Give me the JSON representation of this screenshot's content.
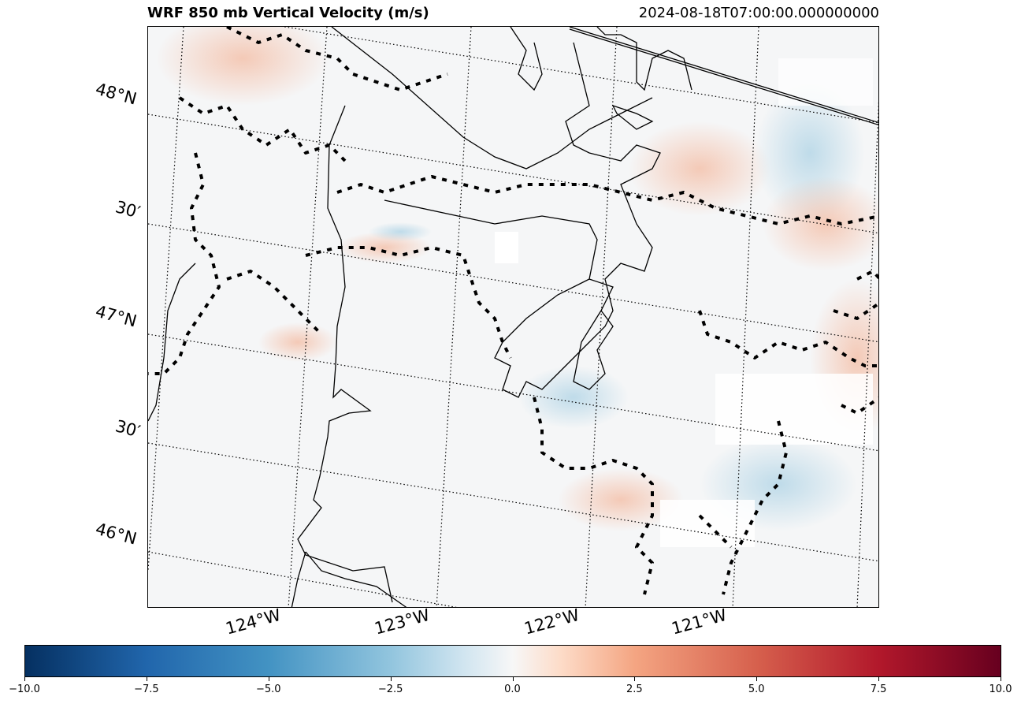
{
  "title": "WRF 850 mb Vertical Velocity (m/s)",
  "valid_time": "2024-08-18T07:00:00.000000000",
  "map": {
    "latitude_labels": [
      "48°N",
      "30′",
      "47°N",
      "30′",
      "46°N"
    ],
    "longitude_labels": [
      "124°W",
      "123°W",
      "122°W",
      "121°W"
    ],
    "line_color": "#000000",
    "gridline_style": "dotted",
    "features": [
      "coastline-icon",
      "state-border-icon",
      "county-border-icon",
      "gridline-icon"
    ]
  },
  "colorbar": {
    "colormap": "RdBu_r",
    "min": -10.0,
    "max": 10.0,
    "tick_labels": [
      "−10.0",
      "−7.5",
      "−5.0",
      "−2.5",
      "0.0",
      "2.5",
      "5.0",
      "7.5",
      "10.0"
    ],
    "colors": [
      "#053061",
      "#2166ac",
      "#4393c3",
      "#92c5de",
      "#f7f7f7",
      "#f4a582",
      "#d6604d",
      "#b2182b",
      "#67001f"
    ]
  }
}
